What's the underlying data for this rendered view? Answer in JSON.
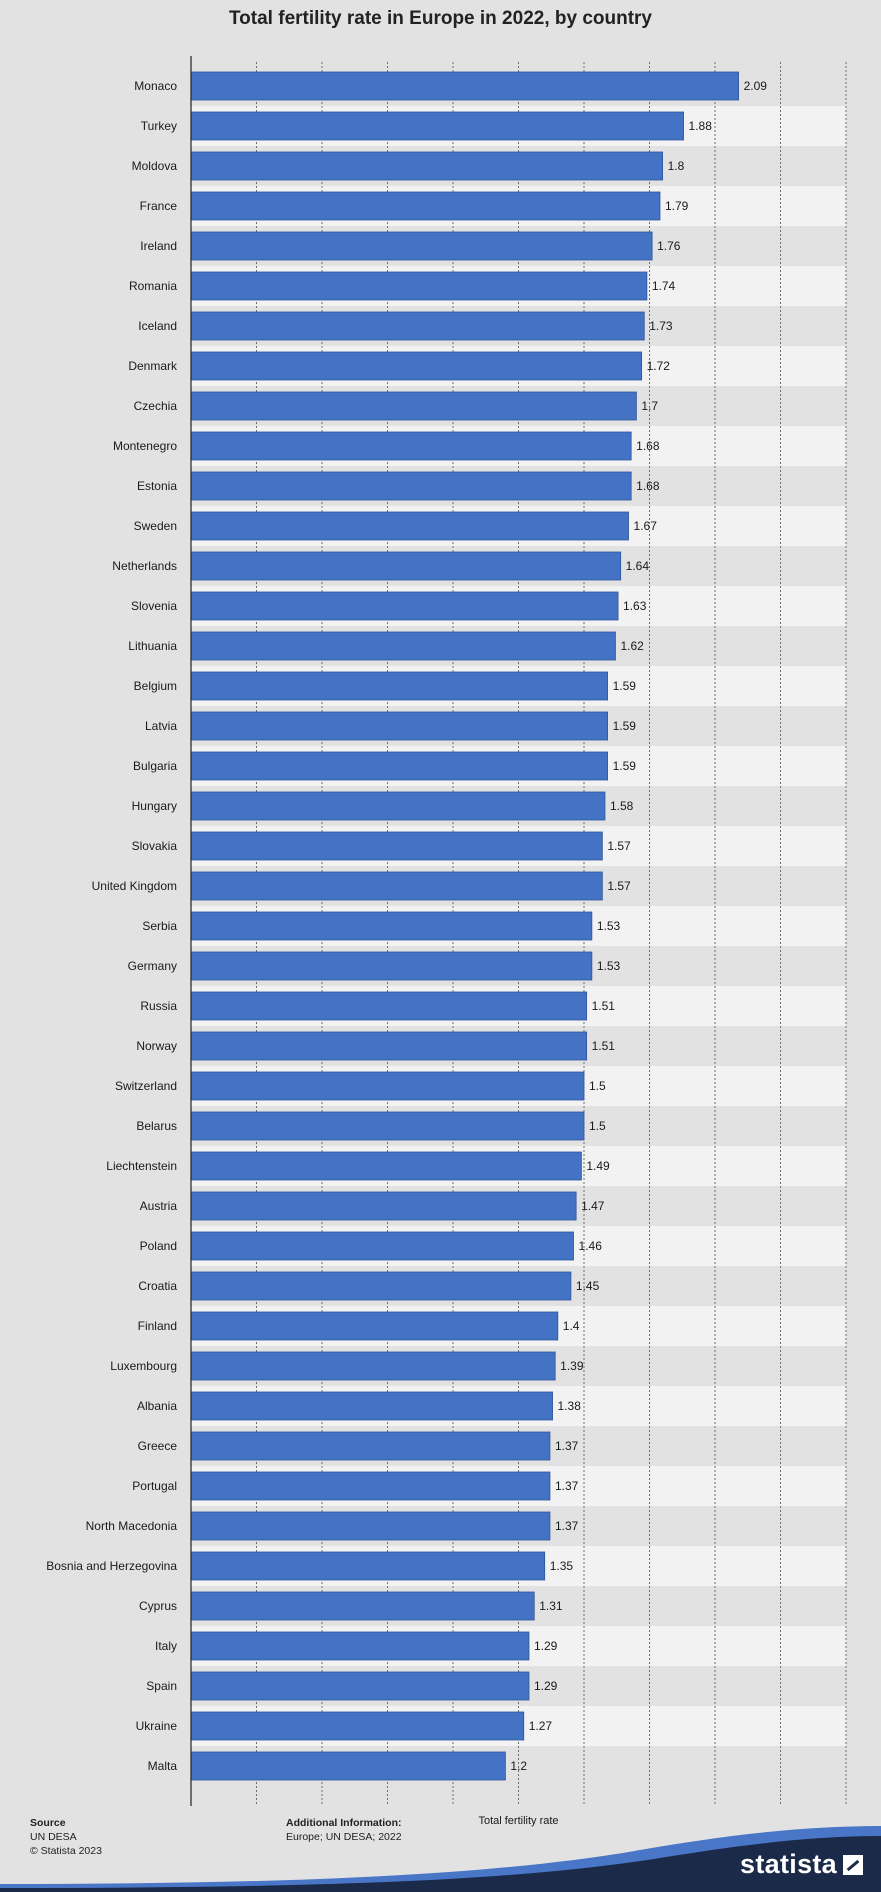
{
  "chart_data": {
    "type": "bar",
    "orientation": "horizontal",
    "title": "Total fertility rate in Europe in 2022, by country",
    "xlabel": "Total fertility rate",
    "ylabel": "",
    "xlim": [
      0,
      2.5
    ],
    "grid": true,
    "categories": [
      "Monaco",
      "Turkey",
      "Moldova",
      "France",
      "Ireland",
      "Romania",
      "Iceland",
      "Denmark",
      "Czechia",
      "Montenegro",
      "Estonia",
      "Sweden",
      "Netherlands",
      "Slovenia",
      "Lithuania",
      "Belgium",
      "Latvia",
      "Bulgaria",
      "Hungary",
      "Slovakia",
      "United Kingdom",
      "Serbia",
      "Germany",
      "Russia",
      "Norway",
      "Switzerland",
      "Belarus",
      "Liechtenstein",
      "Austria",
      "Poland",
      "Croatia",
      "Finland",
      "Luxembourg",
      "Albania",
      "Greece",
      "Portugal",
      "North Macedonia",
      "Bosnia and Herzegovina",
      "Cyprus",
      "Italy",
      "Spain",
      "Ukraine",
      "Malta"
    ],
    "values": [
      2.09,
      1.88,
      1.8,
      1.79,
      1.76,
      1.74,
      1.73,
      1.72,
      1.7,
      1.68,
      1.68,
      1.67,
      1.64,
      1.63,
      1.62,
      1.59,
      1.59,
      1.59,
      1.58,
      1.57,
      1.57,
      1.53,
      1.53,
      1.51,
      1.51,
      1.5,
      1.5,
      1.49,
      1.47,
      1.46,
      1.45,
      1.4,
      1.39,
      1.38,
      1.37,
      1.37,
      1.37,
      1.35,
      1.31,
      1.29,
      1.29,
      1.27,
      1.2
    ],
    "labels": [
      "2.09",
      "1.88",
      "1.8",
      "1.79",
      "1.76",
      "1.74",
      "1.73",
      "1.72",
      "1.7",
      "1.68",
      "1.68",
      "1.67",
      "1.64",
      "1.63",
      "1.62",
      "1.59",
      "1.59",
      "1.59",
      "1.58",
      "1.57",
      "1.57",
      "1.53",
      "1.53",
      "1.51",
      "1.51",
      "1.5",
      "1.5",
      "1.49",
      "1.47",
      "1.46",
      "1.45",
      "1.4",
      "1.39",
      "1.38",
      "1.37",
      "1.37",
      "1.37",
      "1.35",
      "1.31",
      "1.29",
      "1.29",
      "1.27",
      "1.2"
    ],
    "colors": {
      "bar": "#4472c4",
      "bar_border": "#2f5597",
      "band_dark": "#e2e2e2",
      "band_light": "#f2f2f2"
    }
  },
  "footer": {
    "source_heading": "Source",
    "source_lines": [
      "UN DESA",
      "© Statista 2023"
    ],
    "additional_heading": "Additional Information:",
    "additional_text": "Europe; UN DESA; 2022"
  },
  "logo": {
    "text": "statista",
    "icon": "statista-mark-icon"
  }
}
